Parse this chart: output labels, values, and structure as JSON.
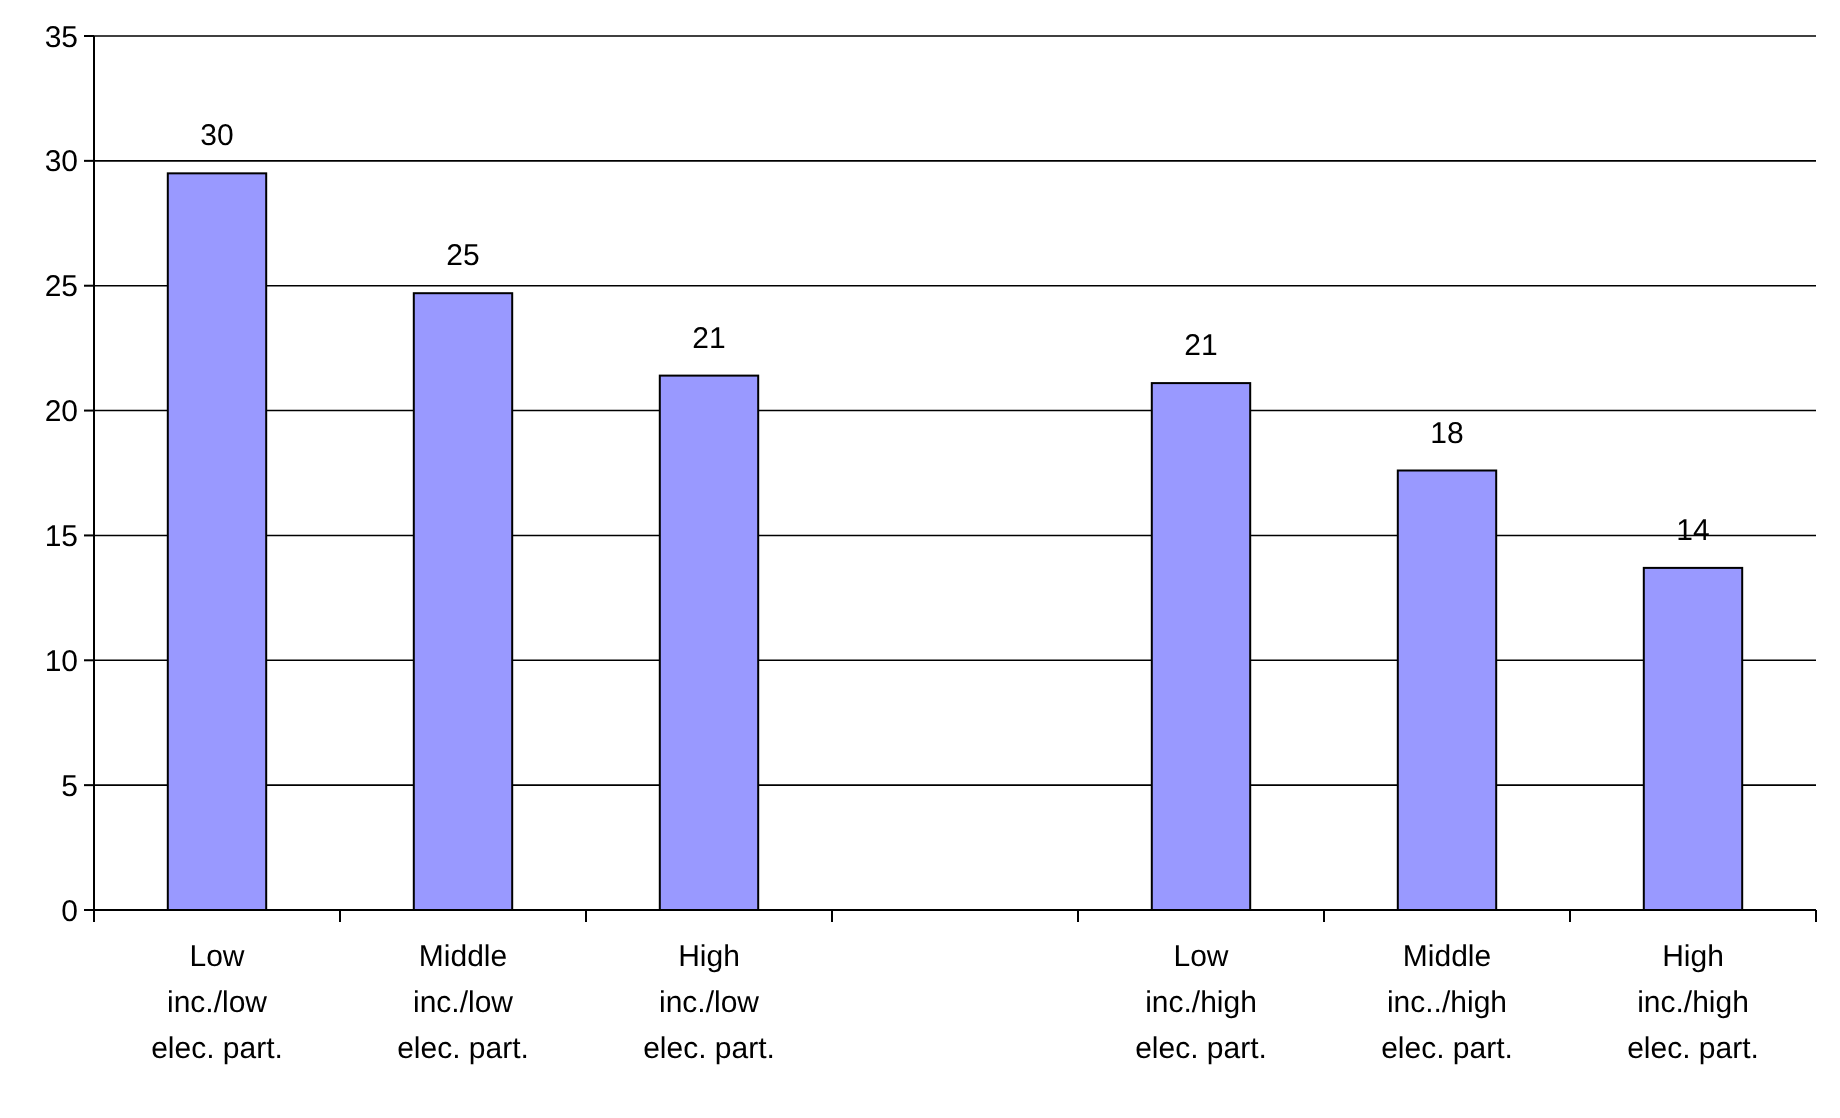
{
  "chart_data": {
    "type": "bar",
    "categories": [
      "Low inc./low elec. part.",
      "Middle inc./low elec. part.",
      "High inc./low elec. part.",
      null,
      "Low inc./high elec. part.",
      "Middle inc../high elec. part.",
      "High inc./high elec. part."
    ],
    "values": [
      29.5,
      24.7,
      21.4,
      null,
      21.1,
      17.6,
      13.7
    ],
    "value_labels": [
      "30",
      "25",
      "21",
      null,
      "21",
      "18",
      "14"
    ],
    "color": "#9999ff",
    "ylim": [
      0,
      35
    ],
    "yticks": [
      0,
      5,
      10,
      15,
      20,
      25,
      30,
      35
    ],
    "grid": "y"
  }
}
